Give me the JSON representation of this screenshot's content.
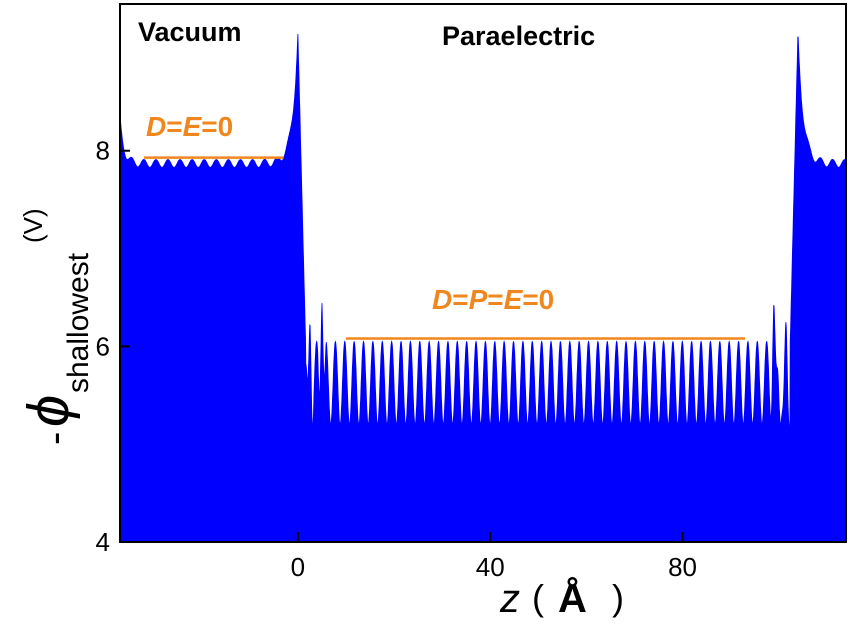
{
  "chart_data": {
    "type": "area",
    "xlabel_var": "z",
    "xlabel_unit": "Å",
    "ylabel_prefix": "-",
    "ylabel_symbol": "ϕ",
    "ylabel_sub": "shallowest",
    "ylabel_unit": "(V)",
    "xlim": [
      -37,
      114
    ],
    "ylim": [
      4,
      9.5
    ],
    "x_ticks": [
      0,
      40,
      80
    ],
    "y_ticks": [
      4,
      6,
      8
    ],
    "x_tick_labels": [
      "0",
      "40",
      "80"
    ],
    "y_tick_labels": [
      "4",
      "6",
      "8"
    ],
    "region_labels": [
      "Vacuum",
      "Paraelectric"
    ],
    "annotations": [
      {
        "text_parts": [
          {
            "t": "D",
            "i": true
          },
          {
            "t": "=",
            "i": false
          },
          {
            "t": "E",
            "i": true
          },
          {
            "t": "=0",
            "i": false
          }
        ],
        "y": 7.93,
        "x_start": -32,
        "x_end": -3
      },
      {
        "text_parts": [
          {
            "t": "D",
            "i": true
          },
          {
            "t": "=",
            "i": false
          },
          {
            "t": "P",
            "i": true
          },
          {
            "t": "=",
            "i": false
          },
          {
            "t": "E",
            "i": true
          },
          {
            "t": "=0",
            "i": false
          }
        ],
        "y": 6.08,
        "x_start": 10,
        "x_end": 93
      }
    ],
    "fill_color": "#0000ff",
    "annotation_color": "#f0871e",
    "series": [
      {
        "vacuum_level_left": 7.87,
        "vacuum_level_right": 7.87,
        "peak_value": 9.2,
        "peak_positions": [
          0,
          104
        ],
        "slab_max": 6.05,
        "slab_min": 5.2,
        "surface_spikes": [
          {
            "x": 2.5,
            "max": 6.25,
            "min": 4.9
          },
          {
            "x": 5.0,
            "max": 6.45,
            "min": 5.3
          },
          {
            "x": 99.0,
            "max": 6.45,
            "min": 5.3
          },
          {
            "x": 101.5,
            "max": 6.25,
            "min": 4.9
          }
        ]
      }
    ]
  }
}
